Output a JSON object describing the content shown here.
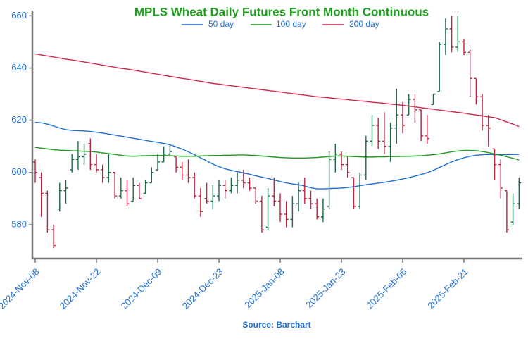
{
  "chart_data": {
    "type": "ohlc",
    "title": "MPLS Wheat Daily Futures Front Month Continuous",
    "source": "Source: Barchart",
    "categories": [
      "2024-Nov-08",
      null,
      null,
      null,
      null,
      null,
      null,
      null,
      null,
      null,
      "2024-Nov-22",
      null,
      null,
      null,
      null,
      null,
      null,
      null,
      null,
      null,
      "2024-Dec-09",
      null,
      null,
      null,
      null,
      null,
      null,
      null,
      null,
      null,
      "2024-Dec-23",
      null,
      null,
      null,
      null,
      null,
      null,
      null,
      null,
      null,
      "2025-Jan-08",
      null,
      null,
      null,
      null,
      null,
      null,
      null,
      null,
      null,
      "2025-Jan-23",
      null,
      null,
      null,
      null,
      null,
      null,
      null,
      null,
      null,
      "2025-Feb-06",
      null,
      null,
      null,
      null,
      null,
      null,
      null,
      null,
      null,
      "2025-Feb-21",
      null,
      null,
      null,
      null,
      null,
      null,
      null,
      null,
      null
    ],
    "open": [
      604,
      598,
      592,
      578,
      586,
      593,
      601,
      605,
      606,
      611,
      603,
      601,
      598,
      600,
      591,
      593,
      589,
      595,
      592,
      596,
      601,
      604,
      607,
      606,
      602,
      599,
      598,
      591,
      590,
      589,
      591,
      595,
      593,
      595,
      597,
      596,
      594,
      589,
      579,
      591,
      589,
      584,
      582,
      588,
      593,
      590,
      588,
      583,
      587,
      605,
      607,
      603,
      598,
      587,
      599,
      612,
      618,
      612,
      610,
      617,
      622,
      622,
      628,
      624,
      614,
      626,
      631,
      649,
      655,
      648,
      650,
      646,
      636,
      629,
      618,
      609,
      603,
      593,
      581,
      588
    ],
    "high": [
      605,
      600,
      593,
      580,
      596,
      597,
      607,
      612,
      611,
      613,
      607,
      603,
      607,
      600,
      598,
      597,
      598,
      596,
      597,
      602,
      607,
      610,
      611,
      606,
      604,
      605,
      600,
      594,
      596,
      595,
      597,
      597,
      598,
      600,
      601,
      598,
      594,
      591,
      594,
      598,
      592,
      589,
      591,
      596,
      598,
      593,
      590,
      590,
      608,
      611,
      608,
      606,
      598,
      600,
      614,
      622,
      621,
      623,
      619,
      632,
      627,
      630,
      630,
      624,
      622,
      630,
      650,
      659,
      660,
      660,
      651,
      647,
      636,
      630,
      622,
      609,
      605,
      593,
      592,
      598
    ],
    "low": [
      596,
      583,
      577,
      571,
      585,
      588,
      600,
      601,
      603,
      601,
      600,
      596,
      596,
      590,
      590,
      587,
      589,
      590,
      592,
      596,
      601,
      604,
      606,
      600,
      597,
      596,
      590,
      583,
      588,
      586,
      589,
      590,
      592,
      592,
      594,
      593,
      588,
      577,
      578,
      587,
      581,
      579,
      579,
      585,
      588,
      586,
      582,
      581,
      586,
      600,
      601,
      598,
      586,
      586,
      597,
      610,
      609,
      607,
      604,
      611,
      615,
      622,
      619,
      612,
      611,
      626,
      631,
      645,
      646,
      646,
      645,
      629,
      626,
      616,
      610,
      597,
      590,
      577,
      580,
      586
    ],
    "close": [
      600,
      592,
      578,
      572,
      593,
      594,
      605,
      606,
      607,
      603,
      601,
      598,
      600,
      591,
      593,
      588,
      595,
      590,
      596,
      600,
      604,
      607,
      608,
      602,
      599,
      598,
      591,
      585,
      589,
      591,
      595,
      593,
      595,
      597,
      596,
      594,
      589,
      578,
      591,
      589,
      584,
      582,
      588,
      593,
      590,
      588,
      583,
      586,
      605,
      607,
      603,
      600,
      587,
      599,
      612,
      618,
      612,
      610,
      617,
      622,
      618,
      628,
      624,
      614,
      613,
      630,
      649,
      655,
      648,
      650,
      646,
      636,
      629,
      618,
      617,
      603,
      594,
      578,
      588,
      596
    ],
    "up_color": "#1b6b45",
    "down_color": "#c0203a",
    "series": [
      {
        "name": "50 day",
        "color": "#1f6fd6",
        "values": [
          619.2,
          619.0,
          618.5,
          617.8,
          617.0,
          616.4,
          616.1,
          616.0,
          615.9,
          615.7,
          615.4,
          615.1,
          614.7,
          614.3,
          613.9,
          613.5,
          613.1,
          612.7,
          612.3,
          611.9,
          611.5,
          611.1,
          610.6,
          609.8,
          608.9,
          607.9,
          606.8,
          605.6,
          604.4,
          603.2,
          602.2,
          601.4,
          600.8,
          600.3,
          599.8,
          599.3,
          598.7,
          598.2,
          597.7,
          597.1,
          596.5,
          596.0,
          595.6,
          595.3,
          594.8,
          594.1,
          593.7,
          593.7,
          593.8,
          593.9,
          594.0,
          594.2,
          594.5,
          594.9,
          595.3,
          595.6,
          595.9,
          596.2,
          596.6,
          597.0,
          597.5,
          598.0,
          598.6,
          599.2,
          599.9,
          600.8,
          601.9,
          603.0,
          604.0,
          604.9,
          605.6,
          606.2,
          606.6,
          606.8,
          606.9,
          606.8,
          606.8,
          606.8,
          606.9,
          606.9
        ]
      },
      {
        "name": "100 day",
        "color": "#1e9a1e",
        "values": [
          609.6,
          609.3,
          609.0,
          608.7,
          608.5,
          608.4,
          608.3,
          608.2,
          608.1,
          608.0,
          607.8,
          607.5,
          607.2,
          606.9,
          606.6,
          606.3,
          606.2,
          606.3,
          606.4,
          606.5,
          606.5,
          606.5,
          606.4,
          606.3,
          606.2,
          606.2,
          606.2,
          606.3,
          606.4,
          606.5,
          606.5,
          606.6,
          606.6,
          606.7,
          606.7,
          606.6,
          606.5,
          606.3,
          606.1,
          605.9,
          605.7,
          605.6,
          605.5,
          605.5,
          605.5,
          605.6,
          605.7,
          605.9,
          606.1,
          606.3,
          606.3,
          606.2,
          606.1,
          606.0,
          605.9,
          605.9,
          606.0,
          606.0,
          606.1,
          606.1,
          606.2,
          606.2,
          606.3,
          606.4,
          606.6,
          606.8,
          607.1,
          607.5,
          607.9,
          608.2,
          608.4,
          608.4,
          608.3,
          608.0,
          607.6,
          607.1,
          606.6,
          606.0,
          605.4,
          604.8
        ]
      },
      {
        "name": "200 day",
        "color": "#d0284a",
        "values": [
          645.4,
          645.0,
          644.6,
          644.2,
          643.8,
          643.4,
          643.1,
          642.7,
          642.3,
          641.9,
          641.5,
          641.1,
          640.7,
          640.3,
          639.9,
          639.6,
          639.2,
          638.8,
          638.4,
          638.0,
          637.6,
          637.2,
          636.8,
          636.4,
          636.0,
          635.7,
          635.3,
          634.9,
          634.5,
          634.1,
          633.8,
          633.5,
          633.2,
          632.9,
          632.6,
          632.3,
          632.0,
          631.7,
          631.4,
          631.1,
          630.8,
          630.5,
          630.2,
          629.9,
          629.6,
          629.3,
          629.0,
          628.8,
          628.6,
          628.3,
          628.1,
          627.9,
          627.6,
          627.4,
          627.2,
          626.9,
          626.7,
          626.5,
          626.2,
          626.0,
          625.7,
          625.4,
          625.1,
          624.8,
          624.5,
          624.2,
          623.9,
          623.6,
          623.3,
          623.0,
          622.7,
          622.3,
          622.0,
          621.7,
          621.3,
          621.0,
          620.2,
          619.3,
          618.5,
          617.6
        ]
      }
    ],
    "ylim": [
      567,
      662
    ],
    "yticks": [
      580,
      600,
      620,
      640,
      660
    ]
  }
}
